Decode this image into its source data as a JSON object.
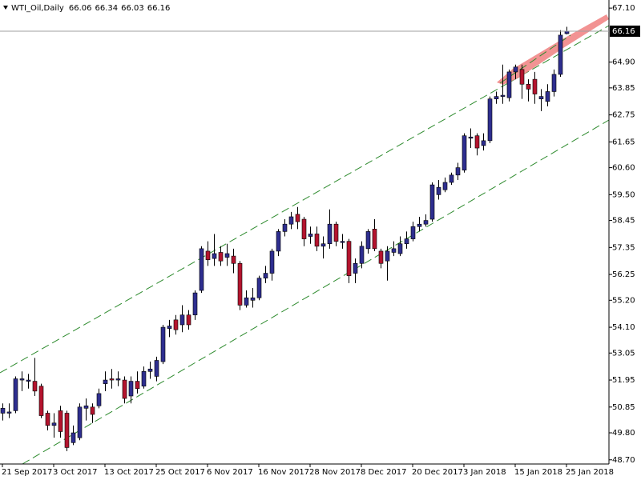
{
  "chart_data": {
    "type": "candlestick",
    "symbol": "WTI_Oil,Daily",
    "categories": [
      "21 Sep 2017",
      null,
      null,
      null,
      null,
      null,
      null,
      null,
      "3 Oct 2017",
      null,
      null,
      null,
      null,
      null,
      null,
      null,
      "13 Oct 2017",
      null,
      null,
      null,
      null,
      null,
      null,
      null,
      "25 Oct 2017",
      null,
      null,
      null,
      null,
      null,
      null,
      null,
      "6 Nov 2017",
      null,
      null,
      null,
      null,
      null,
      null,
      null,
      "16 Nov 2017",
      null,
      null,
      null,
      null,
      null,
      null,
      null,
      "28 Nov 2017",
      null,
      null,
      null,
      null,
      null,
      null,
      null,
      "8 Dec 2017",
      null,
      null,
      null,
      null,
      null,
      null,
      null,
      "20 Dec 2017",
      null,
      null,
      null,
      null,
      null,
      null,
      null,
      "3 Jan 2018",
      null,
      null,
      null,
      null,
      null,
      null,
      null,
      "15 Jan 2018",
      null,
      null,
      null,
      null,
      null,
      null,
      null,
      "25 Jan 2018"
    ],
    "open": [
      50.6,
      50.6,
      50.7,
      51.95,
      51.9,
      51.9,
      51.7,
      50.6,
      50.1,
      50.7,
      50.6,
      49.4,
      49.6,
      50.8,
      50.85,
      50.9,
      51.8,
      52.0,
      51.95,
      51.95,
      51.3,
      51.9,
      51.7,
      52.3,
      52.1,
      52.7,
      54.05,
      54.4,
      54.2,
      54.6,
      54.6,
      55.6,
      57.2,
      56.9,
      57.15,
      56.95,
      57.0,
      56.7,
      55.0,
      55.2,
      55.3,
      56.1,
      56.3,
      57.2,
      58.0,
      58.3,
      58.7,
      58.5,
      57.8,
      57.9,
      57.4,
      57.5,
      58.3,
      57.55,
      57.6,
      56.3,
      56.7,
      57.3,
      58.1,
      57.2,
      56.8,
      57.15,
      57.1,
      57.5,
      57.7,
      58.2,
      58.3,
      58.5,
      59.5,
      59.7,
      60.0,
      60.3,
      60.5,
      61.8,
      61.9,
      61.5,
      61.7,
      63.4,
      63.5,
      63.45,
      64.5,
      64.6,
      64.0,
      64.2,
      63.4,
      63.3,
      63.7,
      64.4,
      66.06
    ],
    "high": [
      51.0,
      51.0,
      52.1,
      52.3,
      52.2,
      52.85,
      51.8,
      50.7,
      50.6,
      50.9,
      50.7,
      50.1,
      51.0,
      51.2,
      51.0,
      51.6,
      52.3,
      52.4,
      52.3,
      52.1,
      52.1,
      52.3,
      52.5,
      52.7,
      52.9,
      54.2,
      54.4,
      54.6,
      55.0,
      54.8,
      55.6,
      57.4,
      57.6,
      57.9,
      57.4,
      57.5,
      57.3,
      56.8,
      55.6,
      55.7,
      56.2,
      56.6,
      57.3,
      58.1,
      58.5,
      58.8,
      59.0,
      58.6,
      58.2,
      58.2,
      57.8,
      58.9,
      58.4,
      57.9,
      57.7,
      56.9,
      57.6,
      58.1,
      58.5,
      57.3,
      57.4,
      57.6,
      57.8,
      58.0,
      58.4,
      58.6,
      58.7,
      60.0,
      60.1,
      60.2,
      60.4,
      60.8,
      62.0,
      62.2,
      62.0,
      62.0,
      63.5,
      63.7,
      64.8,
      64.6,
      64.8,
      64.8,
      64.2,
      64.5,
      63.8,
      64.0,
      64.6,
      66.2,
      66.34
    ],
    "low": [
      50.3,
      50.4,
      50.6,
      51.5,
      51.6,
      51.3,
      50.4,
      49.9,
      49.6,
      49.6,
      49.05,
      49.3,
      49.5,
      50.3,
      50.2,
      50.8,
      51.5,
      51.6,
      51.7,
      51.0,
      51.0,
      51.4,
      51.6,
      52.0,
      51.9,
      52.6,
      53.7,
      53.8,
      53.9,
      54.0,
      54.4,
      55.5,
      56.6,
      56.6,
      56.6,
      56.6,
      56.3,
      54.8,
      54.9,
      54.9,
      55.2,
      55.9,
      56.0,
      57.0,
      57.8,
      58.1,
      58.1,
      57.4,
      57.5,
      57.2,
      56.9,
      57.3,
      57.4,
      57.3,
      55.9,
      55.9,
      56.5,
      57.1,
      57.2,
      56.5,
      56.0,
      57.0,
      57.0,
      57.3,
      57.6,
      58.0,
      58.2,
      58.4,
      59.3,
      59.6,
      59.9,
      60.1,
      60.4,
      61.4,
      61.1,
      61.3,
      61.6,
      63.2,
      63.2,
      63.3,
      64.2,
      63.4,
      63.3,
      63.2,
      62.9,
      63.1,
      63.5,
      64.3,
      66.03
    ],
    "close": [
      50.8,
      50.65,
      52.0,
      52.0,
      51.95,
      51.5,
      50.5,
      50.1,
      50.2,
      49.85,
      49.2,
      49.8,
      50.85,
      50.9,
      50.55,
      51.4,
      51.95,
      51.95,
      52.0,
      51.2,
      51.9,
      51.6,
      52.3,
      52.4,
      52.75,
      54.1,
      54.15,
      54.0,
      54.6,
      54.2,
      55.5,
      57.3,
      56.85,
      57.1,
      56.8,
      57.1,
      56.7,
      55.0,
      55.3,
      55.3,
      56.1,
      56.3,
      57.2,
      58.0,
      58.3,
      58.6,
      58.4,
      57.7,
      57.9,
      57.4,
      57.5,
      58.3,
      57.6,
      57.6,
      56.2,
      56.7,
      57.4,
      58.0,
      57.3,
      56.7,
      57.2,
      57.3,
      57.5,
      57.7,
      58.2,
      58.3,
      58.45,
      59.9,
      59.8,
      60.0,
      60.3,
      60.6,
      61.9,
      61.85,
      61.4,
      61.7,
      63.4,
      63.5,
      63.55,
      64.5,
      64.7,
      64.0,
      63.8,
      63.6,
      63.5,
      63.7,
      64.4,
      66.0,
      66.16
    ],
    "bull_color": "#2e2e8f",
    "bear_color": "#b4142e",
    "ylim": [
      48.53,
      67.43
    ],
    "yticks": [
      {
        "value": 48.7,
        "label": "48.70"
      },
      {
        "value": 49.8,
        "label": "49.80"
      },
      50.85,
      51.95,
      53.05,
      {
        "value": 54.1,
        "label": "54.10"
      },
      {
        "value": 55.2,
        "label": "55.20"
      },
      56.25,
      57.35,
      58.45,
      {
        "value": 59.5,
        "label": "59.50"
      },
      {
        "value": 60.6,
        "label": "60.60"
      },
      61.65,
      62.75,
      63.85,
      {
        "value": 64.9,
        "label": "64.90"
      },
      {
        "value": 67.1,
        "label": "67.10"
      }
    ],
    "last_price": 66.16
  }
}
